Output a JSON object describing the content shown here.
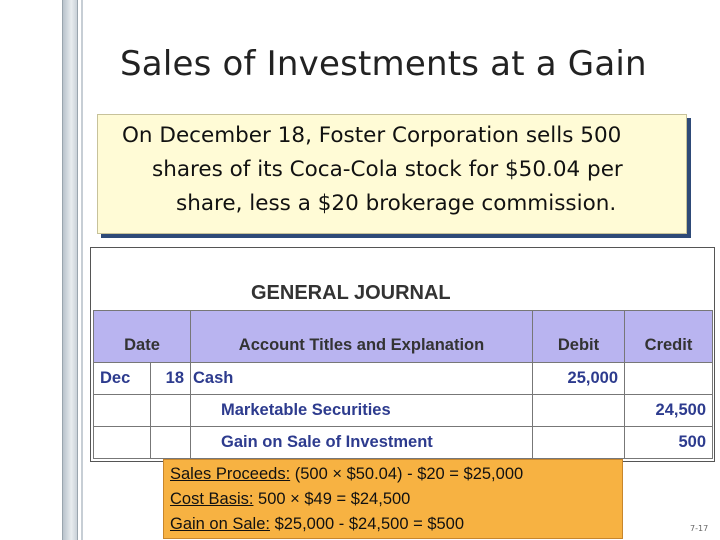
{
  "title": "Sales of Investments at a Gain",
  "intro": {
    "line1": "On December 18, Foster Corporation sells 500",
    "line2": "shares of its Coca-Cola stock for $50.04 per",
    "line3": "share, less a $20 brokerage commission."
  },
  "journal": {
    "title": "GENERAL JOURNAL",
    "headers": {
      "date": "Date",
      "account": "Account Titles and Explanation",
      "debit": "Debit",
      "credit": "Credit"
    },
    "rows": [
      {
        "month": "Dec",
        "day": "18",
        "account": "Cash",
        "debit": "25,000",
        "credit": ""
      },
      {
        "month": "",
        "day": "",
        "account": "Marketable Securities",
        "debit": "",
        "credit": "24,500"
      },
      {
        "month": "",
        "day": "",
        "account": "Gain on Sale of Investment",
        "debit": "",
        "credit": "500"
      }
    ]
  },
  "note": {
    "proceeds_label": "Sales Proceeds:",
    "proceeds_value": " (500 × $50.04) - $20 = $25,000",
    "basis_label": "Cost Basis:",
    "basis_value": " 500 × $49 = $24,500",
    "gain_label": "Gain on Sale:",
    "gain_value": " $25,000 - $24,500 = $500"
  },
  "slide_number": "7-17"
}
